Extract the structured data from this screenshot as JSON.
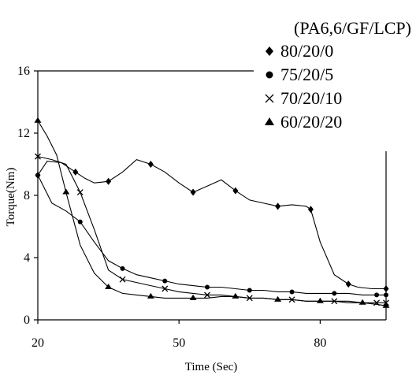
{
  "chart_data": {
    "type": "line",
    "xlabel": "Time (Sec)",
    "ylabel": "Torque(Nm)",
    "xlim": [
      20,
      94
    ],
    "ylim": [
      0,
      16
    ],
    "xticks": [
      20,
      50,
      80
    ],
    "yticks": [
      0,
      4,
      8,
      12,
      16
    ],
    "grid": false,
    "legend": {
      "title": "(PA6,6/GF/LCP)",
      "placement": "top-right"
    },
    "series": [
      {
        "name": "80/20/0",
        "marker": "diamond",
        "x": [
          20,
          22,
          25,
          28,
          30,
          32,
          35,
          38,
          41,
          44,
          47,
          50,
          53,
          56,
          59,
          62,
          65,
          68,
          71,
          74,
          77,
          78,
          80,
          83,
          86,
          88,
          91,
          94
        ],
        "y": [
          9.3,
          10.2,
          10.1,
          9.5,
          9.1,
          8.8,
          8.9,
          9.5,
          10.3,
          10.0,
          9.5,
          8.8,
          8.2,
          8.6,
          9.0,
          8.3,
          7.7,
          7.5,
          7.3,
          7.4,
          7.3,
          7.1,
          5.0,
          2.9,
          2.3,
          2.1,
          2.0,
          2.0
        ]
      },
      {
        "name": "75/20/5",
        "marker": "circle",
        "x": [
          20,
          23,
          26,
          29,
          32,
          35,
          38,
          41,
          44,
          47,
          50,
          53,
          56,
          59,
          62,
          65,
          68,
          71,
          74,
          77,
          80,
          83,
          86,
          89,
          92,
          94
        ],
        "y": [
          9.3,
          7.5,
          7.0,
          6.3,
          5.0,
          3.8,
          3.3,
          2.9,
          2.7,
          2.5,
          2.3,
          2.2,
          2.1,
          2.1,
          2.0,
          1.9,
          1.9,
          1.8,
          1.8,
          1.7,
          1.7,
          1.7,
          1.7,
          1.6,
          1.6,
          1.6
        ]
      },
      {
        "name": "70/20/10",
        "marker": "cross",
        "x": [
          20,
          23,
          26,
          29,
          32,
          35,
          38,
          41,
          44,
          47,
          50,
          53,
          56,
          59,
          62,
          65,
          68,
          71,
          74,
          77,
          80,
          83,
          86,
          89,
          92,
          94
        ],
        "y": [
          10.5,
          10.3,
          10.0,
          8.2,
          5.8,
          3.2,
          2.6,
          2.4,
          2.2,
          2.0,
          1.8,
          1.7,
          1.6,
          1.6,
          1.5,
          1.4,
          1.4,
          1.3,
          1.3,
          1.2,
          1.2,
          1.2,
          1.2,
          1.1,
          1.1,
          1.1
        ]
      },
      {
        "name": "60/20/20",
        "marker": "triangle",
        "x": [
          20,
          22,
          24,
          26,
          29,
          32,
          35,
          38,
          41,
          44,
          47,
          50,
          53,
          56,
          59,
          62,
          65,
          68,
          71,
          74,
          77,
          80,
          83,
          86,
          89,
          92,
          94
        ],
        "y": [
          12.8,
          11.8,
          10.6,
          8.2,
          4.8,
          3.0,
          2.1,
          1.7,
          1.6,
          1.5,
          1.4,
          1.4,
          1.4,
          1.4,
          1.5,
          1.5,
          1.4,
          1.4,
          1.3,
          1.3,
          1.2,
          1.2,
          1.2,
          1.1,
          1.1,
          1.0,
          0.9
        ]
      }
    ]
  }
}
